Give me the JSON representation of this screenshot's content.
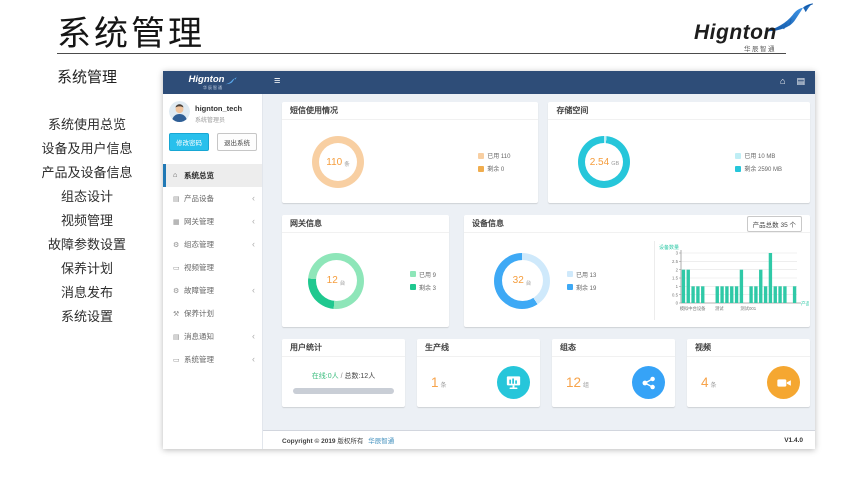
{
  "page": {
    "title": "系统管理"
  },
  "brand": {
    "name": "Hignton",
    "tagline": "华辰智通"
  },
  "outer_menu": {
    "heading": "系统管理",
    "items": [
      "系统使用总览",
      "设备及用户信息",
      "产品及设备信息",
      "组态设计",
      "视频管理",
      "故障参数设置",
      "保养计划",
      "消息发布",
      "系统设置"
    ]
  },
  "icons": {
    "home-icon": "⌂",
    "menu-toggle-icon": "≡",
    "file-icon": "▤",
    "book-icon": "▤",
    "hdd-icon": "▦",
    "gears-icon": "⚙",
    "monitor-icon": "▭",
    "wrench-icon": "⚒",
    "chevron-left-icon": "‹"
  },
  "app": {
    "sidebar": {
      "brand": "Hignton",
      "brand_sub": "华辰智通",
      "user": {
        "name": "hignton_tech",
        "role": "系统管理员"
      },
      "buttons": {
        "change_password": "修改密码",
        "logout": "退出系统"
      },
      "menu": [
        {
          "key": "overview",
          "label": "系统总览",
          "icon": "home-icon",
          "active": true,
          "chevron": false
        },
        {
          "key": "products",
          "label": "产品设备",
          "icon": "book-icon",
          "active": false,
          "chevron": true
        },
        {
          "key": "gateways",
          "label": "网关管理",
          "icon": "hdd-icon",
          "active": false,
          "chevron": true
        },
        {
          "key": "scada",
          "label": "组态管理",
          "icon": "gears-icon",
          "active": false,
          "chevron": true
        },
        {
          "key": "video",
          "label": "视频管理",
          "icon": "monitor-icon",
          "active": false,
          "chevron": false
        },
        {
          "key": "faults",
          "label": "故障管理",
          "icon": "gears-icon",
          "active": false,
          "chevron": true
        },
        {
          "key": "maintenance",
          "label": "保养计划",
          "icon": "wrench-icon",
          "active": false,
          "chevron": false
        },
        {
          "key": "messages",
          "label": "消息通知",
          "icon": "book-icon",
          "active": false,
          "chevron": true
        },
        {
          "key": "system",
          "label": "系统管理",
          "icon": "monitor-icon",
          "active": false,
          "chevron": true
        }
      ]
    },
    "cards": {
      "sms": {
        "title": "短信使用情况"
      },
      "storage": {
        "title": "存储空间"
      },
      "gateway": {
        "title": "网关信息"
      },
      "device": {
        "title": "设备信息",
        "badge": "产品总数 35 个"
      },
      "users": {
        "title": "用户统计",
        "online": "在线:0人",
        "sep": " / ",
        "total": "总数:12人",
        "online_pct": 0
      },
      "line": {
        "title": "生产线",
        "value": "1",
        "unit": "条"
      },
      "scada": {
        "title": "组态",
        "value": "12",
        "unit": "组"
      },
      "video": {
        "title": "视频",
        "value": "4",
        "unit": "条"
      }
    },
    "footer": {
      "copyright_strong": "Copyright © 2019",
      "copyright_rest": "版权所有",
      "company": "华辰智通",
      "version": "V1.4.0"
    }
  },
  "chart_data": [
    {
      "id": "sms",
      "type": "pie",
      "title": "短信使用情况",
      "center_value": "110",
      "center_unit": "条",
      "offset_deg": 0,
      "series": [
        {
          "name": "已用",
          "value": 110,
          "color": "#f8cfa2"
        },
        {
          "name": "剩余",
          "value": 0,
          "color": "#f0ad4e"
        }
      ]
    },
    {
      "id": "storage",
      "type": "pie",
      "title": "存储空间",
      "center_value": "2.54",
      "center_unit": "GB",
      "offset_deg": 0,
      "series": [
        {
          "name": "已用",
          "value": 10,
          "unit": "MB",
          "color": "#bfeef5"
        },
        {
          "name": "剩余",
          "value": 2590,
          "unit": "MB",
          "color": "#26c6da"
        }
      ]
    },
    {
      "id": "gateway",
      "type": "pie",
      "title": "网关信息",
      "center_value": "12",
      "center_unit": "台",
      "offset_deg": 275,
      "series": [
        {
          "name": "已用",
          "value": 9,
          "color": "#8ee6b9"
        },
        {
          "name": "剩余",
          "value": 3,
          "color": "#1fc88f"
        }
      ]
    },
    {
      "id": "device",
      "type": "pie",
      "title": "设备信息",
      "center_value": "32",
      "center_unit": "台",
      "offset_deg": 0,
      "series": [
        {
          "name": "已用",
          "value": 13,
          "color": "#cfe9fb"
        },
        {
          "name": "剩余",
          "value": 19,
          "color": "#3ea9f5"
        }
      ]
    },
    {
      "id": "device-bar",
      "type": "bar",
      "ylabel": "设备数量",
      "xlabel": "产品",
      "ylim": [
        0,
        3
      ],
      "yticks": [
        0,
        0.5,
        1,
        1.5,
        2,
        2.5,
        3
      ],
      "x_tick_labels": [
        "模拟中台设备",
        "测试",
        "测试001"
      ],
      "bar_color": "#2fc9a7",
      "axis_color": "#2fc9a7",
      "grid": true,
      "values": [
        2,
        2,
        1,
        1,
        1,
        0,
        0,
        1,
        1,
        1,
        1,
        1,
        2,
        0,
        1,
        1,
        2,
        1,
        3,
        1,
        1,
        1,
        0,
        1
      ]
    }
  ]
}
